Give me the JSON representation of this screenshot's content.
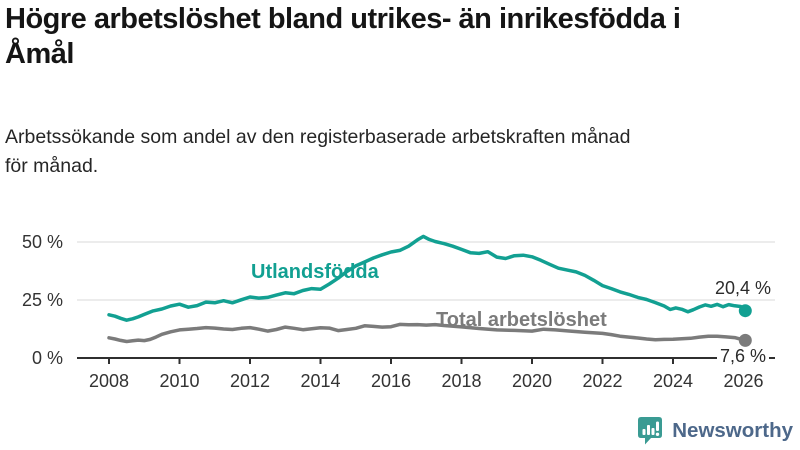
{
  "header": {
    "title": "Högre arbetslöshet bland utrikes- än inrikesfödda i\nÅmål",
    "subtitle": "Arbetssökande som andel av den registerbaserade arbetskraften månad\nför månad."
  },
  "chart_data": {
    "type": "line",
    "x_ticks": [
      2008,
      2010,
      2012,
      2014,
      2016,
      2018,
      2020,
      2022,
      2024,
      2026
    ],
    "y_ticks": [
      {
        "value": 0,
        "label": "0 %"
      },
      {
        "value": 25,
        "label": "25 %"
      },
      {
        "value": 50,
        "label": "50 %"
      }
    ],
    "xlim": [
      2007.1,
      2026.9
    ],
    "ylim": [
      0,
      55
    ],
    "grid": "horizontal",
    "grid_color": "#d9d9d9",
    "axis_color": "#2f2f2f",
    "series": [
      {
        "id": "utlandsfodda",
        "name": "Utlandsfödda",
        "color": "#12a092",
        "end_label": "20,4 %",
        "end_value": 20.4,
        "points": [
          [
            2008.0,
            18.6
          ],
          [
            2008.17,
            18.0
          ],
          [
            2008.33,
            17.1
          ],
          [
            2008.5,
            16.3
          ],
          [
            2008.67,
            16.9
          ],
          [
            2008.83,
            17.7
          ],
          [
            2009.0,
            18.8
          ],
          [
            2009.25,
            20.3
          ],
          [
            2009.5,
            21.1
          ],
          [
            2009.75,
            22.4
          ],
          [
            2010.0,
            23.2
          ],
          [
            2010.25,
            21.9
          ],
          [
            2010.5,
            22.6
          ],
          [
            2010.75,
            24.1
          ],
          [
            2011.0,
            23.8
          ],
          [
            2011.25,
            24.7
          ],
          [
            2011.5,
            23.8
          ],
          [
            2011.75,
            25.1
          ],
          [
            2012.0,
            26.3
          ],
          [
            2012.25,
            25.8
          ],
          [
            2012.5,
            26.1
          ],
          [
            2012.75,
            27.1
          ],
          [
            2013.0,
            28.1
          ],
          [
            2013.25,
            27.7
          ],
          [
            2013.5,
            29.1
          ],
          [
            2013.75,
            29.9
          ],
          [
            2014.0,
            29.6
          ],
          [
            2014.25,
            31.9
          ],
          [
            2014.5,
            34.4
          ],
          [
            2014.75,
            37.3
          ],
          [
            2015.0,
            39.7
          ],
          [
            2015.25,
            41.4
          ],
          [
            2015.5,
            43.1
          ],
          [
            2015.75,
            44.5
          ],
          [
            2016.0,
            45.7
          ],
          [
            2016.25,
            46.4
          ],
          [
            2016.5,
            48.2
          ],
          [
            2016.75,
            50.9
          ],
          [
            2016.92,
            52.4
          ],
          [
            2017.08,
            51.1
          ],
          [
            2017.25,
            50.2
          ],
          [
            2017.5,
            49.3
          ],
          [
            2017.75,
            48.2
          ],
          [
            2018.0,
            46.8
          ],
          [
            2018.25,
            45.4
          ],
          [
            2018.5,
            45.1
          ],
          [
            2018.75,
            45.8
          ],
          [
            2019.0,
            43.5
          ],
          [
            2019.25,
            42.9
          ],
          [
            2019.5,
            44.1
          ],
          [
            2019.75,
            44.3
          ],
          [
            2020.0,
            43.6
          ],
          [
            2020.25,
            42.1
          ],
          [
            2020.5,
            40.4
          ],
          [
            2020.75,
            38.7
          ],
          [
            2021.0,
            37.9
          ],
          [
            2021.25,
            37.1
          ],
          [
            2021.5,
            35.6
          ],
          [
            2021.75,
            33.5
          ],
          [
            2022.0,
            31.2
          ],
          [
            2022.25,
            29.9
          ],
          [
            2022.5,
            28.5
          ],
          [
            2022.75,
            27.4
          ],
          [
            2023.0,
            26.1
          ],
          [
            2023.25,
            25.2
          ],
          [
            2023.5,
            23.9
          ],
          [
            2023.75,
            22.4
          ],
          [
            2023.92,
            20.9
          ],
          [
            2024.08,
            21.6
          ],
          [
            2024.25,
            21.0
          ],
          [
            2024.42,
            19.9
          ],
          [
            2024.58,
            20.8
          ],
          [
            2024.75,
            22.0
          ],
          [
            2024.92,
            22.9
          ],
          [
            2025.08,
            22.3
          ],
          [
            2025.25,
            23.1
          ],
          [
            2025.42,
            22.1
          ],
          [
            2025.58,
            23.0
          ],
          [
            2025.75,
            22.5
          ],
          [
            2025.92,
            22.2
          ],
          [
            2026.05,
            20.4
          ]
        ]
      },
      {
        "id": "total-arbetsloshet",
        "name": "Total arbetslöshet",
        "color": "#7b7b7b",
        "end_label": "7,6 %",
        "end_value": 7.6,
        "points": [
          [
            2008.0,
            8.7
          ],
          [
            2008.17,
            8.2
          ],
          [
            2008.33,
            7.6
          ],
          [
            2008.5,
            7.1
          ],
          [
            2008.67,
            7.4
          ],
          [
            2008.83,
            7.7
          ],
          [
            2009.0,
            7.5
          ],
          [
            2009.17,
            8.0
          ],
          [
            2009.33,
            9.0
          ],
          [
            2009.5,
            10.2
          ],
          [
            2009.75,
            11.3
          ],
          [
            2010.0,
            12.1
          ],
          [
            2010.25,
            12.4
          ],
          [
            2010.5,
            12.7
          ],
          [
            2010.75,
            13.1
          ],
          [
            2011.0,
            12.9
          ],
          [
            2011.25,
            12.5
          ],
          [
            2011.5,
            12.3
          ],
          [
            2011.75,
            12.8
          ],
          [
            2012.0,
            13.1
          ],
          [
            2012.25,
            12.4
          ],
          [
            2012.5,
            11.6
          ],
          [
            2012.75,
            12.3
          ],
          [
            2013.0,
            13.3
          ],
          [
            2013.25,
            12.8
          ],
          [
            2013.5,
            12.2
          ],
          [
            2013.75,
            12.6
          ],
          [
            2014.0,
            13.0
          ],
          [
            2014.25,
            12.9
          ],
          [
            2014.5,
            11.8
          ],
          [
            2014.75,
            12.3
          ],
          [
            2015.0,
            12.8
          ],
          [
            2015.25,
            13.9
          ],
          [
            2015.5,
            13.6
          ],
          [
            2015.75,
            13.3
          ],
          [
            2016.0,
            13.5
          ],
          [
            2016.25,
            14.5
          ],
          [
            2016.5,
            14.3
          ],
          [
            2016.75,
            14.4
          ],
          [
            2017.0,
            14.2
          ],
          [
            2017.25,
            14.4
          ],
          [
            2017.5,
            14.0
          ],
          [
            2018.0,
            13.4
          ],
          [
            2018.5,
            12.7
          ],
          [
            2019.0,
            12.1
          ],
          [
            2019.5,
            11.9
          ],
          [
            2020.0,
            11.6
          ],
          [
            2020.33,
            12.4
          ],
          [
            2020.67,
            12.1
          ],
          [
            2021.0,
            11.7
          ],
          [
            2021.5,
            11.1
          ],
          [
            2022.0,
            10.6
          ],
          [
            2022.25,
            10.1
          ],
          [
            2022.5,
            9.4
          ],
          [
            2022.75,
            9.0
          ],
          [
            2023.0,
            8.6
          ],
          [
            2023.25,
            8.2
          ],
          [
            2023.5,
            7.9
          ],
          [
            2023.75,
            8.0
          ],
          [
            2024.0,
            8.1
          ],
          [
            2024.25,
            8.3
          ],
          [
            2024.5,
            8.5
          ],
          [
            2024.75,
            9.0
          ],
          [
            2025.0,
            9.4
          ],
          [
            2025.25,
            9.4
          ],
          [
            2025.5,
            9.1
          ],
          [
            2025.75,
            8.8
          ],
          [
            2026.05,
            7.6
          ]
        ]
      }
    ]
  },
  "branding": {
    "logo_text": "Newsworthy",
    "logo_icon": "newsworthy-bubble-chart-icon",
    "logo_text_color": "#4d688a",
    "icon_color": "#3a9b93"
  }
}
